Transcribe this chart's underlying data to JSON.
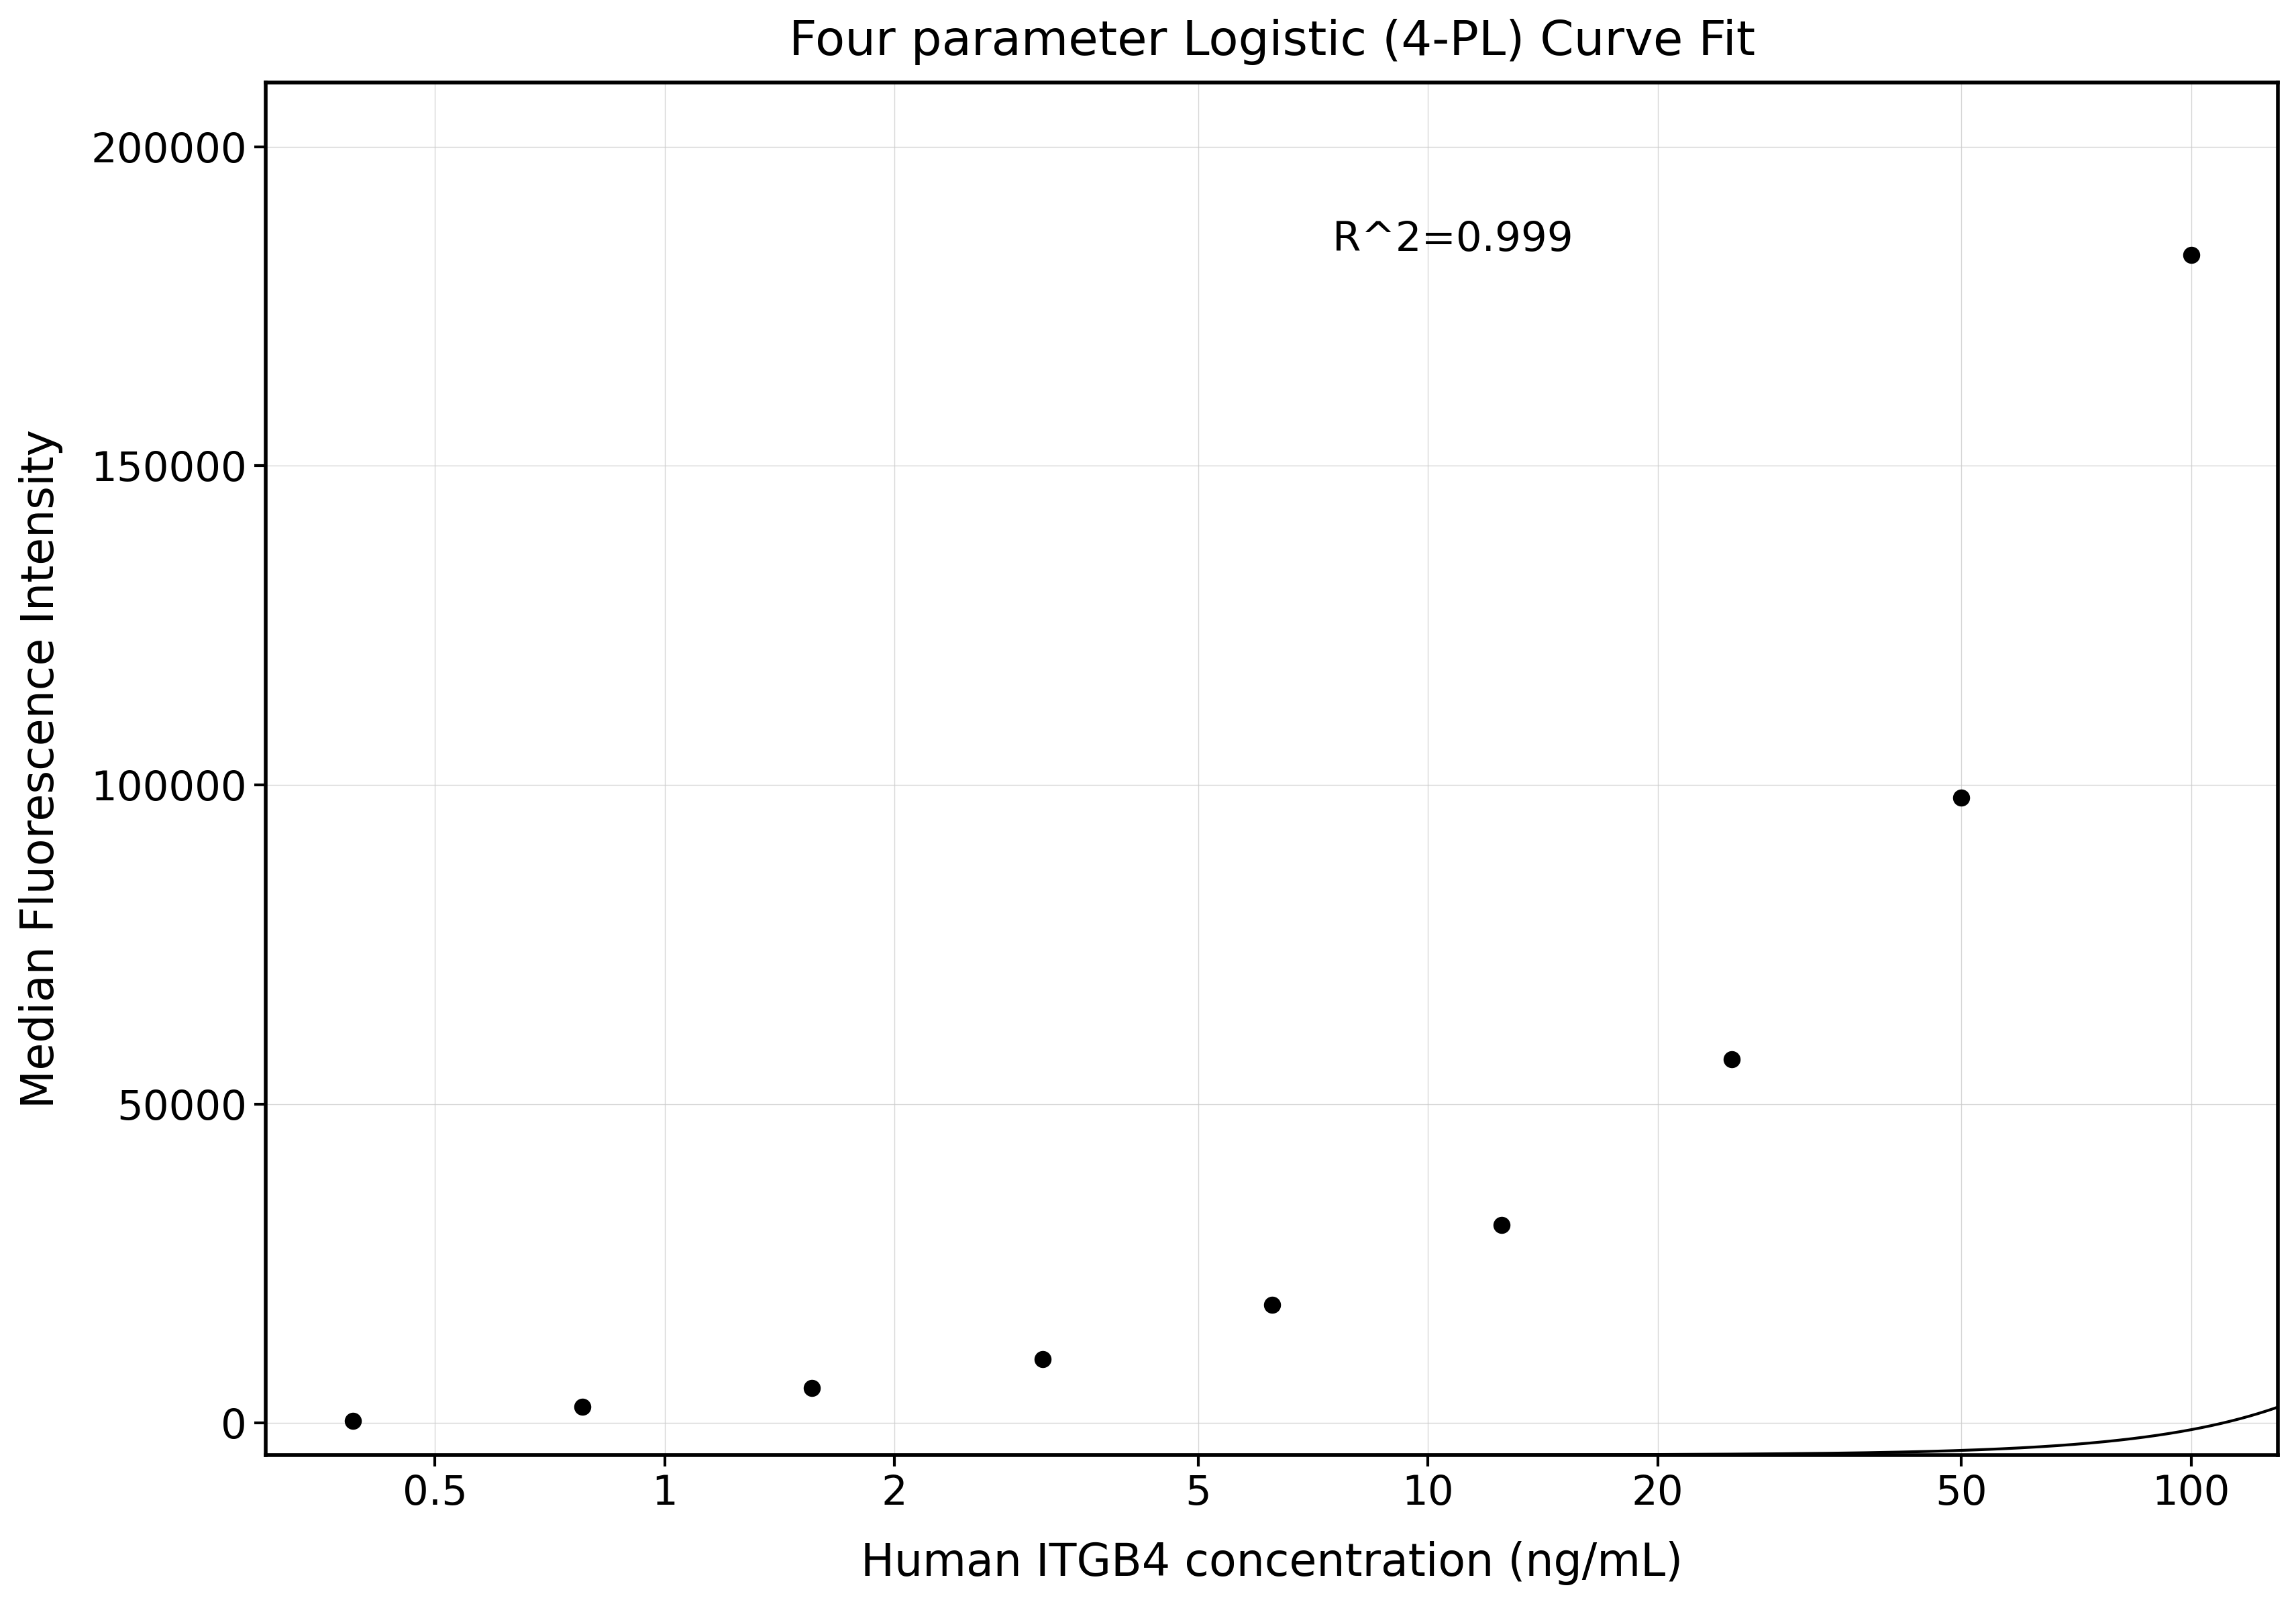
{
  "title": "Four parameter Logistic (4-PL) Curve Fit",
  "xlabel": "Human ITGB4 concentration (ng/mL)",
  "ylabel": "Median Fluorescence Intensity",
  "r_squared": "R^2=0.999",
  "x_data": [
    0.39,
    0.78,
    1.56,
    3.125,
    6.25,
    12.5,
    25.0,
    50.0,
    100.0
  ],
  "y_data": [
    300,
    2500,
    5500,
    10000,
    18500,
    31000,
    57000,
    98000,
    183000
  ],
  "xscale": "log",
  "xlim": [
    0.3,
    130
  ],
  "ylim": [
    -5000,
    210000
  ],
  "yticks": [
    0,
    50000,
    100000,
    150000,
    200000
  ],
  "ytick_labels": [
    "0",
    "50000",
    "100000",
    "150000",
    "200000"
  ],
  "xtick_labels": [
    "0.5",
    "1",
    "2",
    "5",
    "10",
    "20",
    "50",
    "100"
  ],
  "xtick_values": [
    0.5,
    1,
    2,
    5,
    10,
    20,
    50,
    100
  ],
  "background_color": "#ffffff",
  "grid_color": "#cccccc",
  "dot_color": "#000000",
  "line_color": "#000000",
  "axis_color": "#000000",
  "title_fontsize": 52,
  "label_fontsize": 48,
  "tick_fontsize": 44,
  "annotation_fontsize": 44,
  "dot_size": 300,
  "line_width": 3.0
}
